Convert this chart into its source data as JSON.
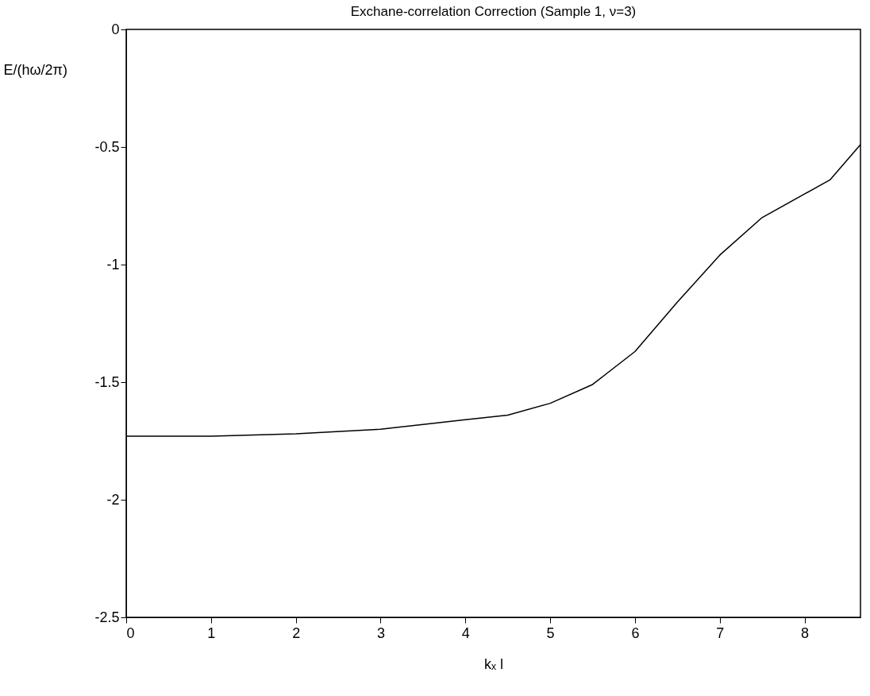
{
  "chart_data": {
    "type": "line",
    "title": "Exchane-correlation Correction (Sample 1, ν=3)",
    "xlabel": "kₓ l",
    "ylabel": "E/(hω/2π)",
    "x": [
      0,
      1,
      2,
      3,
      3.5,
      4,
      4.5,
      5,
      5.5,
      6,
      6.5,
      7,
      7.5,
      8,
      8.3,
      8.66
    ],
    "series": [
      {
        "color": "#000000",
        "values": [
          -1.73,
          -1.73,
          -1.72,
          -1.7,
          -1.68,
          -1.66,
          -1.64,
          -1.59,
          -1.51,
          -1.37,
          -1.16,
          -0.96,
          -0.8,
          -0.7,
          -0.64,
          -0.49
        ]
      }
    ],
    "xlim": [
      0,
      8.66
    ],
    "xticks": [
      0,
      1,
      2,
      3,
      4,
      5,
      6,
      7,
      8
    ],
    "ylim": [
      -2.5,
      0
    ],
    "yticks": [
      -2.5,
      -2,
      -1.5,
      -1,
      -0.5,
      0
    ],
    "grid": false,
    "legend": false,
    "marker": "none",
    "line_style": "solid"
  }
}
